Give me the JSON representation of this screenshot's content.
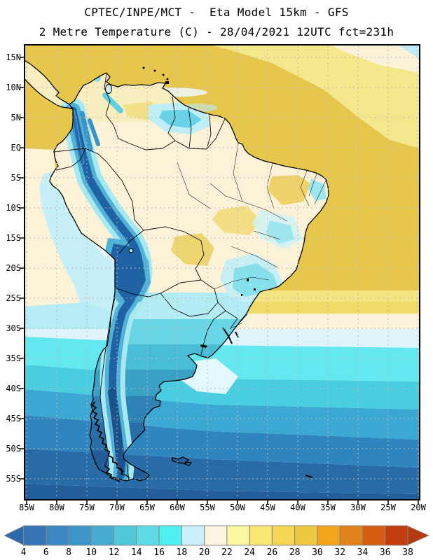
{
  "header": {
    "title_line1": "CPTEC/INPE/MCT -  Eta Model 15km - GFS",
    "title_line2": "2 Metre Temperature (C) - 28/04/2021 12UTC fct=231h"
  },
  "map": {
    "lat_labels": [
      "15N",
      "10N",
      "5N",
      "EQ",
      "5S",
      "10S",
      "15S",
      "20S",
      "25S",
      "30S",
      "35S",
      "40S",
      "45S",
      "50S",
      "55S"
    ],
    "lon_labels": [
      "85W",
      "80W",
      "75W",
      "70W",
      "65W",
      "60W",
      "55W",
      "50W",
      "45W",
      "40W",
      "35W",
      "30W",
      "25W",
      "20W"
    ]
  },
  "colorbar": {
    "tick_labels": [
      "4",
      "6",
      "8",
      "10",
      "12",
      "14",
      "16",
      "18",
      "20",
      "22",
      "24",
      "26",
      "28",
      "30",
      "32",
      "34",
      "36",
      "38"
    ],
    "segment_colors": [
      "#3473b4",
      "#3d87c2",
      "#3f97c9",
      "#47abd3",
      "#52c6da",
      "#60dce6",
      "#4ff0f0",
      "#cbeffb",
      "#fdf4e0",
      "#fdf7a2",
      "#f9e773",
      "#f3d654",
      "#eec843",
      "#f2a51a",
      "#e2821a",
      "#d55c10",
      "#c23e0e"
    ],
    "left_arrow_color": "#2d68aa",
    "right_arrow_color": "#b23a0e"
  }
}
